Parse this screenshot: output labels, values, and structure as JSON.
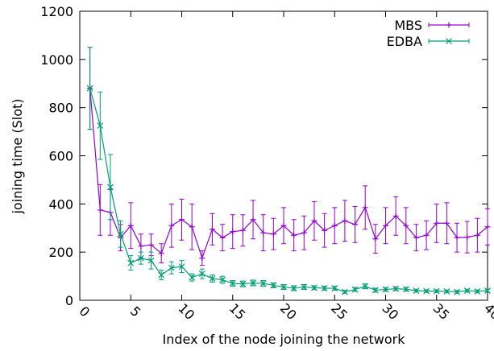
{
  "chart_data": {
    "type": "line",
    "title": "",
    "xlabel": "Index of the node joining the network",
    "ylabel": "joining time (Slot)",
    "xlim": [
      0,
      40
    ],
    "ylim": [
      0,
      1200
    ],
    "x_ticks": [
      0,
      5,
      10,
      15,
      20,
      25,
      30,
      35,
      40
    ],
    "y_ticks": [
      0,
      200,
      400,
      600,
      800,
      1000,
      1200
    ],
    "grid": false,
    "legend_position": "top-right",
    "x": [
      1,
      2,
      3,
      4,
      5,
      6,
      7,
      8,
      9,
      10,
      11,
      12,
      13,
      14,
      15,
      16,
      17,
      18,
      19,
      20,
      21,
      22,
      23,
      24,
      25,
      26,
      27,
      28,
      29,
      30,
      31,
      32,
      33,
      34,
      35,
      36,
      37,
      38,
      39,
      40
    ],
    "series": [
      {
        "name": "MBS",
        "color": "#9400d3",
        "marker": "plus",
        "values": [
          880,
          375,
          365,
          260,
          310,
          225,
          230,
          195,
          310,
          335,
          305,
          175,
          295,
          260,
          285,
          290,
          335,
          280,
          275,
          310,
          270,
          280,
          330,
          290,
          310,
          330,
          315,
          385,
          255,
          310,
          350,
          310,
          260,
          270,
          320,
          320,
          260,
          262,
          270,
          305
        ],
        "err_low": [
          170,
          105,
          95,
          55,
          95,
          50,
          45,
          40,
          90,
          85,
          95,
          30,
          65,
          55,
          70,
          65,
          80,
          75,
          65,
          75,
          65,
          70,
          80,
          70,
          75,
          85,
          75,
          90,
          60,
          75,
          80,
          75,
          55,
          60,
          80,
          85,
          60,
          65,
          70,
          75
        ],
        "err_high": [
          170,
          105,
          95,
          55,
          95,
          50,
          45,
          40,
          90,
          85,
          95,
          30,
          65,
          55,
          70,
          65,
          80,
          75,
          65,
          75,
          65,
          70,
          80,
          70,
          75,
          85,
          75,
          90,
          60,
          75,
          80,
          75,
          55,
          60,
          80,
          85,
          60,
          65,
          70,
          75
        ]
      },
      {
        "name": "EDBA",
        "color": "#009e73",
        "marker": "x",
        "values": [
          880,
          725,
          470,
          275,
          155,
          175,
          165,
          105,
          135,
          140,
          95,
          110,
          90,
          85,
          70,
          68,
          72,
          70,
          62,
          55,
          50,
          55,
          52,
          50,
          50,
          35,
          45,
          58,
          42,
          45,
          48,
          46,
          40,
          38,
          38,
          37,
          35,
          40,
          37,
          40
        ],
        "err_low": [
          170,
          140,
          135,
          55,
          30,
          25,
          35,
          20,
          25,
          25,
          15,
          20,
          15,
          15,
          12,
          12,
          12,
          12,
          10,
          10,
          10,
          10,
          8,
          8,
          8,
          6,
          8,
          10,
          8,
          8,
          8,
          8,
          6,
          6,
          6,
          6,
          6,
          6,
          6,
          6
        ],
        "err_high": [
          170,
          140,
          135,
          55,
          30,
          25,
          35,
          20,
          25,
          25,
          15,
          20,
          15,
          15,
          12,
          12,
          12,
          12,
          10,
          10,
          10,
          10,
          8,
          8,
          8,
          6,
          8,
          10,
          8,
          8,
          8,
          8,
          6,
          6,
          6,
          6,
          6,
          6,
          6,
          6
        ]
      }
    ]
  }
}
